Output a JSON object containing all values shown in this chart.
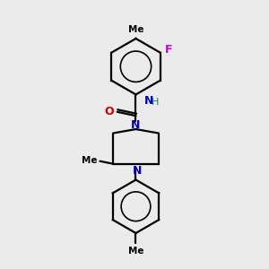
{
  "background_color": "#ebebeb",
  "bond_color": "#000000",
  "N_color": "#0000cc",
  "O_color": "#cc0000",
  "F_color": "#cc00cc",
  "H_color": "#008080",
  "figsize": [
    3.0,
    3.0
  ],
  "dpi": 100,
  "xlim": [
    0,
    10
  ],
  "ylim": [
    0,
    10
  ]
}
